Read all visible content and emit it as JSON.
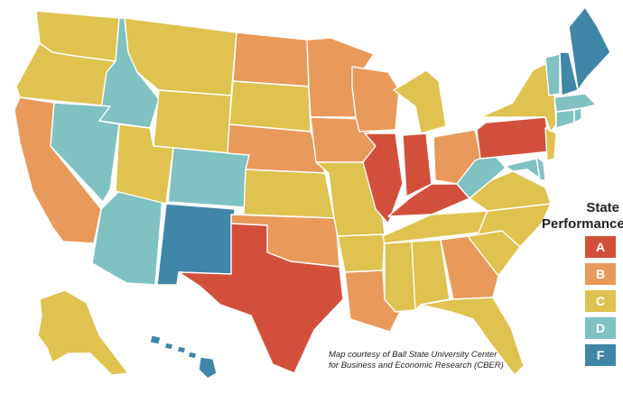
{
  "legend": {
    "title_line1": "State",
    "title_line2": "Performance",
    "items": [
      {
        "grade": "A",
        "color": "#d2503b"
      },
      {
        "grade": "B",
        "color": "#e9995a"
      },
      {
        "grade": "C",
        "color": "#dfc24f"
      },
      {
        "grade": "D",
        "color": "#80c1c1"
      },
      {
        "grade": "F",
        "color": "#3f86a8"
      }
    ]
  },
  "credit": {
    "line1": "Map courtesy of Ball State University Center",
    "line2": "for Business and Economic Research (CBER)"
  },
  "states": [
    {
      "name": "Washington",
      "grade": "C"
    },
    {
      "name": "Oregon",
      "grade": "C"
    },
    {
      "name": "California",
      "grade": "B"
    },
    {
      "name": "Idaho",
      "grade": "D"
    },
    {
      "name": "Nevada",
      "grade": "D"
    },
    {
      "name": "Arizona",
      "grade": "D"
    },
    {
      "name": "Montana",
      "grade": "C"
    },
    {
      "name": "Wyoming",
      "grade": "C"
    },
    {
      "name": "Utah",
      "grade": "C"
    },
    {
      "name": "Colorado",
      "grade": "D"
    },
    {
      "name": "New Mexico",
      "grade": "F"
    },
    {
      "name": "North Dakota",
      "grade": "B"
    },
    {
      "name": "South Dakota",
      "grade": "C"
    },
    {
      "name": "Nebraska",
      "grade": "B"
    },
    {
      "name": "Kansas",
      "grade": "C"
    },
    {
      "name": "Oklahoma",
      "grade": "B"
    },
    {
      "name": "Texas",
      "grade": "A"
    },
    {
      "name": "Minnesota",
      "grade": "B"
    },
    {
      "name": "Iowa",
      "grade": "B"
    },
    {
      "name": "Missouri",
      "grade": "C"
    },
    {
      "name": "Arkansas",
      "grade": "C"
    },
    {
      "name": "Louisiana",
      "grade": "B"
    },
    {
      "name": "Wisconsin",
      "grade": "B"
    },
    {
      "name": "Illinois",
      "grade": "A"
    },
    {
      "name": "Michigan",
      "grade": "C"
    },
    {
      "name": "Indiana",
      "grade": "A"
    },
    {
      "name": "Ohio",
      "grade": "B"
    },
    {
      "name": "Kentucky",
      "grade": "A"
    },
    {
      "name": "Tennessee",
      "grade": "C"
    },
    {
      "name": "Mississippi",
      "grade": "C"
    },
    {
      "name": "Alabama",
      "grade": "C"
    },
    {
      "name": "Georgia",
      "grade": "B"
    },
    {
      "name": "Florida",
      "grade": "C"
    },
    {
      "name": "South Carolina",
      "grade": "C"
    },
    {
      "name": "North Carolina",
      "grade": "C"
    },
    {
      "name": "Virginia",
      "grade": "C"
    },
    {
      "name": "West Virginia",
      "grade": "D"
    },
    {
      "name": "Maryland",
      "grade": "D"
    },
    {
      "name": "Delaware",
      "grade": "D"
    },
    {
      "name": "Pennsylvania",
      "grade": "A"
    },
    {
      "name": "New Jersey",
      "grade": "C"
    },
    {
      "name": "New York",
      "grade": "C"
    },
    {
      "name": "Connecticut",
      "grade": "D"
    },
    {
      "name": "Rhode Island",
      "grade": "D"
    },
    {
      "name": "Massachusetts",
      "grade": "D"
    },
    {
      "name": "Vermont",
      "grade": "D"
    },
    {
      "name": "New Hampshire",
      "grade": "F"
    },
    {
      "name": "Maine",
      "grade": "F"
    },
    {
      "name": "Alaska",
      "grade": "C"
    },
    {
      "name": "Hawaii",
      "grade": "F"
    }
  ]
}
